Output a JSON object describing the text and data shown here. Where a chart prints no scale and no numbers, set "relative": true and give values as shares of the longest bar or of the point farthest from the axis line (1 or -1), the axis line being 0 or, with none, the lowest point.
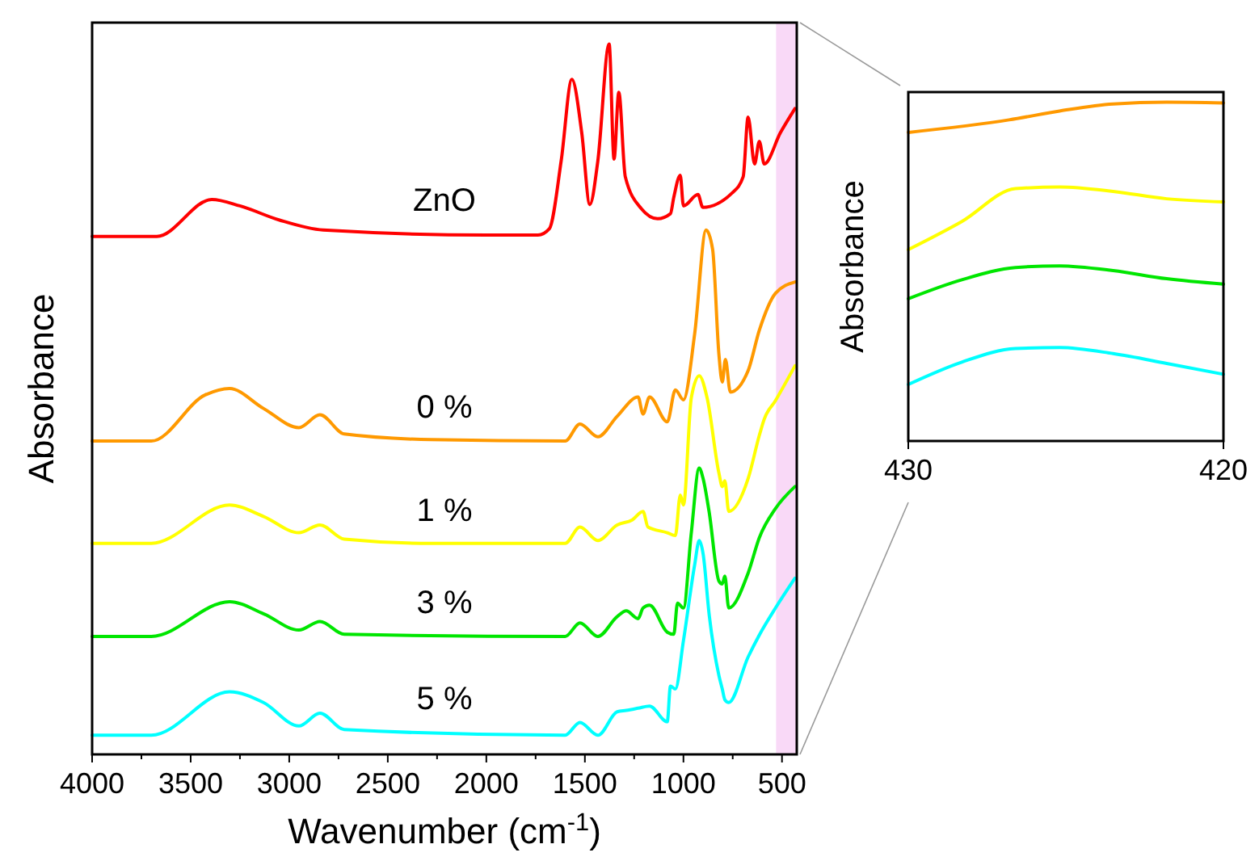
{
  "chart_data": [
    {
      "type": "line",
      "relative": true,
      "xlabel": "Wavenumber (cm$^{-1}$)",
      "ylabel": "Absorbance",
      "xlim": [
        4000,
        425
      ],
      "xticks": [
        4000,
        {
          "value": 3750,
          "label": null
        },
        3500,
        {
          "value": 3250,
          "label": null
        },
        3000,
        {
          "value": 2750,
          "label": null
        },
        2500,
        {
          "value": 2250,
          "label": null
        },
        2000,
        {
          "value": 1750,
          "label": null
        },
        1500,
        {
          "value": 1250,
          "label": null
        },
        1000,
        {
          "value": 750,
          "label": null
        },
        500
      ],
      "tick_labels": "x",
      "bands": [
        {
          "axis": "x",
          "from": 530,
          "to": 425,
          "color": "#f9d9f7"
        }
      ],
      "series": [
        {
          "name": "ZnO",
          "color": "#ff0000",
          "x": [
            4000,
            3700,
            3672,
            3393,
            3250,
            3049,
            2828,
            2000,
            1738,
            1680,
            1620,
            1566,
            1516,
            1475,
            1434,
            1377,
            1352,
            1328,
            1295,
            1213,
            1131,
            1066,
            1049,
            1016,
            1000,
            926,
            902,
            754,
            697,
            672,
            639,
            615,
            590,
            508,
            434
          ],
          "values": [
            0.729,
            0.729,
            0.729,
            0.781,
            0.772,
            0.752,
            0.738,
            0.731,
            0.731,
            0.74,
            0.836,
            0.95,
            0.875,
            0.774,
            0.836,
            1.0,
            0.838,
            0.932,
            0.813,
            0.768,
            0.754,
            0.761,
            0.784,
            0.815,
            0.772,
            0.788,
            0.77,
            0.79,
            0.813,
            0.897,
            0.831,
            0.863,
            0.831,
            0.875,
            0.909
          ]
        },
        {
          "name": "0 %",
          "color": "#ff9900",
          "x": [
            4000,
            3700,
            3426,
            3303,
            3131,
            2951,
            2844,
            2721,
            2279,
            1600,
            1525,
            1434,
            1336,
            1230,
            1205,
            1172,
            1082,
            1041,
            1000,
            943,
            885,
            852,
            820,
            803,
            787,
            762,
            672,
            615,
            533,
            434
          ],
          "values": [
            0.441,
            0.441,
            0.506,
            0.515,
            0.487,
            0.46,
            0.478,
            0.451,
            0.443,
            0.441,
            0.465,
            0.447,
            0.476,
            0.503,
            0.479,
            0.503,
            0.468,
            0.513,
            0.499,
            0.592,
            0.738,
            0.711,
            0.563,
            0.524,
            0.556,
            0.51,
            0.54,
            0.597,
            0.649,
            0.665
          ]
        },
        {
          "name": "1 %",
          "color": "#ffff00",
          "x": [
            4000,
            3700,
            3303,
            3131,
            2951,
            2844,
            2721,
            2279,
            1600,
            1525,
            1434,
            1336,
            1260,
            1205,
            1180,
            1082,
            1041,
            1016,
            1000,
            960,
            920,
            880,
            820,
            803,
            790,
            770,
            672,
            615,
            590,
            533,
            434
          ],
          "values": [
            0.297,
            0.297,
            0.351,
            0.335,
            0.312,
            0.323,
            0.303,
            0.297,
            0.297,
            0.32,
            0.301,
            0.323,
            0.33,
            0.342,
            0.32,
            0.312,
            0.308,
            0.365,
            0.351,
            0.502,
            0.533,
            0.502,
            0.396,
            0.377,
            0.385,
            0.342,
            0.388,
            0.449,
            0.472,
            0.498,
            0.547
          ]
        },
        {
          "name": "3 %",
          "color": "#00e600",
          "x": [
            4000,
            3700,
            3303,
            3131,
            2951,
            2844,
            2721,
            1600,
            1525,
            1434,
            1336,
            1290,
            1230,
            1205,
            1172,
            1082,
            1049,
            1030,
            1000,
            960,
            920,
            900,
            870,
            820,
            803,
            790,
            770,
            672,
            615,
            533,
            434
          ],
          "values": [
            0.166,
            0.166,
            0.215,
            0.198,
            0.175,
            0.187,
            0.169,
            0.166,
            0.185,
            0.166,
            0.194,
            0.202,
            0.191,
            0.206,
            0.21,
            0.172,
            0.169,
            0.213,
            0.206,
            0.312,
            0.403,
            0.388,
            0.342,
            0.244,
            0.24,
            0.251,
            0.206,
            0.255,
            0.305,
            0.346,
            0.377
          ]
        },
        {
          "name": "5 %",
          "color": "#00ffff",
          "x": [
            4000,
            3700,
            3303,
            3131,
            2951,
            2844,
            2721,
            1600,
            1525,
            1434,
            1336,
            1290,
            1230,
            1172,
            1082,
            1066,
            1041,
            1000,
            943,
            920,
            900,
            870,
            820,
            803,
            790,
            770,
            672,
            615,
            533,
            434
          ],
          "values": [
            0.027,
            0.027,
            0.088,
            0.073,
            0.04,
            0.058,
            0.035,
            0.027,
            0.045,
            0.027,
            0.06,
            0.062,
            0.065,
            0.068,
            0.046,
            0.096,
            0.092,
            0.16,
            0.267,
            0.301,
            0.282,
            0.198,
            0.111,
            0.092,
            0.077,
            0.073,
            0.137,
            0.168,
            0.206,
            0.248
          ]
        }
      ]
    },
    {
      "type": "line",
      "relative": true,
      "ylabel": "Absorbance",
      "xlim": [
        430,
        420
      ],
      "xticks": [
        430,
        420
      ],
      "tick_labels": "x",
      "series": [
        {
          "color": "#ff9900",
          "x": [
            430,
            426.8,
            425.2,
            423.5,
            421.8,
            420
          ],
          "values": [
            0.911,
            0.948,
            0.974,
            0.995,
            1.0,
            0.998
          ]
        },
        {
          "color": "#ffff00",
          "x": [
            430,
            428.3,
            426.6,
            425.2,
            423.5,
            421.8,
            420
          ],
          "values": [
            0.565,
            0.648,
            0.745,
            0.75,
            0.737,
            0.715,
            0.706
          ]
        },
        {
          "color": "#00e600",
          "x": [
            430,
            428.3,
            426.6,
            425.2,
            423.5,
            421.8,
            420
          ],
          "values": [
            0.42,
            0.476,
            0.512,
            0.517,
            0.503,
            0.479,
            0.463
          ]
        },
        {
          "color": "#00ffff",
          "x": [
            430,
            428.3,
            426.6,
            425.2,
            423.5,
            421.8,
            420
          ],
          "values": [
            0.167,
            0.233,
            0.273,
            0.276,
            0.258,
            0.229,
            0.197
          ]
        }
      ]
    }
  ]
}
